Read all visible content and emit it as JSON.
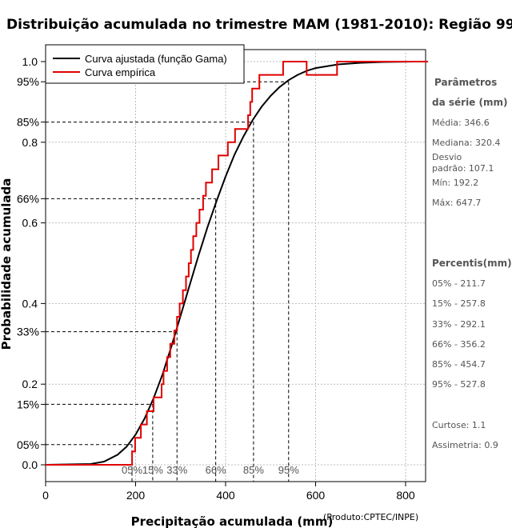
{
  "chart_data": {
    "type": "line",
    "title": "Distribuição acumulada no trimestre MAM (1981-2010): Região 99",
    "xlabel": "Precipitação acumulada (mm)",
    "ylabel": "Probabilidade acumulada",
    "credit": "(Produto:CPTEC/INPE)",
    "xlim": [
      0,
      850
    ],
    "ylim": [
      0,
      1.02
    ],
    "x_ticks": [
      0,
      200,
      400,
      600,
      800
    ],
    "y_ticks": [
      "0.0",
      "0.2",
      "0.4",
      "0.6",
      "0.8",
      "1.0"
    ],
    "y_special_ticks": [
      {
        "label": "05%",
        "value": 0.05
      },
      {
        "label": "15%",
        "value": 0.15
      },
      {
        "label": "33%",
        "value": 0.33
      },
      {
        "label": "66%",
        "value": 0.66
      },
      {
        "label": "85%",
        "value": 0.85
      },
      {
        "label": "95%",
        "value": 0.95
      }
    ],
    "percentile_markers": [
      {
        "label": "05%",
        "prob": 0.05,
        "x": 192
      },
      {
        "label": "15%",
        "prob": 0.15,
        "x": 238
      },
      {
        "label": "33%",
        "prob": 0.33,
        "x": 292
      },
      {
        "label": "66%",
        "prob": 0.66,
        "x": 378
      },
      {
        "label": "85%",
        "prob": 0.85,
        "x": 462
      },
      {
        "label": "95%",
        "prob": 0.95,
        "x": 540
      }
    ],
    "legend": [
      {
        "label": "Curva ajustada (função Gama)",
        "color": "#000000"
      },
      {
        "label": "Curva empírica",
        "color": "#e00000"
      }
    ],
    "series": [
      {
        "name": "Curva ajustada (função Gama)",
        "kind": "line",
        "color": "#000000",
        "points": [
          [
            0,
            0
          ],
          [
            100,
            0.002
          ],
          [
            130,
            0.008
          ],
          [
            160,
            0.025
          ],
          [
            180,
            0.045
          ],
          [
            200,
            0.075
          ],
          [
            220,
            0.115
          ],
          [
            240,
            0.165
          ],
          [
            260,
            0.225
          ],
          [
            280,
            0.295
          ],
          [
            300,
            0.37
          ],
          [
            320,
            0.445
          ],
          [
            340,
            0.52
          ],
          [
            360,
            0.59
          ],
          [
            380,
            0.655
          ],
          [
            400,
            0.715
          ],
          [
            420,
            0.77
          ],
          [
            440,
            0.815
          ],
          [
            460,
            0.855
          ],
          [
            480,
            0.888
          ],
          [
            500,
            0.915
          ],
          [
            520,
            0.937
          ],
          [
            540,
            0.954
          ],
          [
            560,
            0.967
          ],
          [
            580,
            0.977
          ],
          [
            600,
            0.984
          ],
          [
            650,
            0.993
          ],
          [
            700,
            0.997
          ],
          [
            750,
            0.999
          ],
          [
            820,
            1.0
          ]
        ]
      },
      {
        "name": "Curva empírica",
        "kind": "step",
        "color": "#e00000",
        "x_start": 0,
        "x_end": 850,
        "steps": [
          [
            192.2,
            0.033
          ],
          [
            199,
            0.067
          ],
          [
            211.7,
            0.1
          ],
          [
            225,
            0.133
          ],
          [
            240,
            0.167
          ],
          [
            257.8,
            0.2
          ],
          [
            262,
            0.233
          ],
          [
            270,
            0.267
          ],
          [
            277,
            0.3
          ],
          [
            286,
            0.333
          ],
          [
            292.1,
            0.367
          ],
          [
            298,
            0.4
          ],
          [
            305,
            0.433
          ],
          [
            312,
            0.467
          ],
          [
            318,
            0.5
          ],
          [
            323,
            0.533
          ],
          [
            328,
            0.567
          ],
          [
            335,
            0.6
          ],
          [
            342,
            0.633
          ],
          [
            350,
            0.667
          ],
          [
            356.2,
            0.7
          ],
          [
            370,
            0.733
          ],
          [
            384,
            0.767
          ],
          [
            405,
            0.8
          ],
          [
            421,
            0.833
          ],
          [
            450,
            0.867
          ],
          [
            454.7,
            0.9
          ],
          [
            459,
            0.933
          ],
          [
            475,
            0.967
          ],
          [
            527.8,
            1.0
          ],
          [
            580,
            0.967
          ],
          [
            647.7,
            1.0
          ]
        ]
      }
    ]
  },
  "sidebar": {
    "params_heading_1": "Parâmetros",
    "params_heading_2": "da série (mm)",
    "media": "Média: 346.6",
    "mediana": "Mediana: 320.4",
    "desvio_1": "Desvio",
    "desvio_2": "padrão: 107.1",
    "min": "Mín: 192.2",
    "max": "Máx: 647.7",
    "percentis_heading": "Percentis(mm)",
    "p05": "05% - 211.7",
    "p15": "15% - 257.8",
    "p33": "33% - 292.1",
    "p66": "66% - 356.2",
    "p85": "85% - 454.7",
    "p95": "95% - 527.8",
    "curtose": "Curtose: 1.1",
    "assimetria": "Assimetria: 0.9"
  }
}
